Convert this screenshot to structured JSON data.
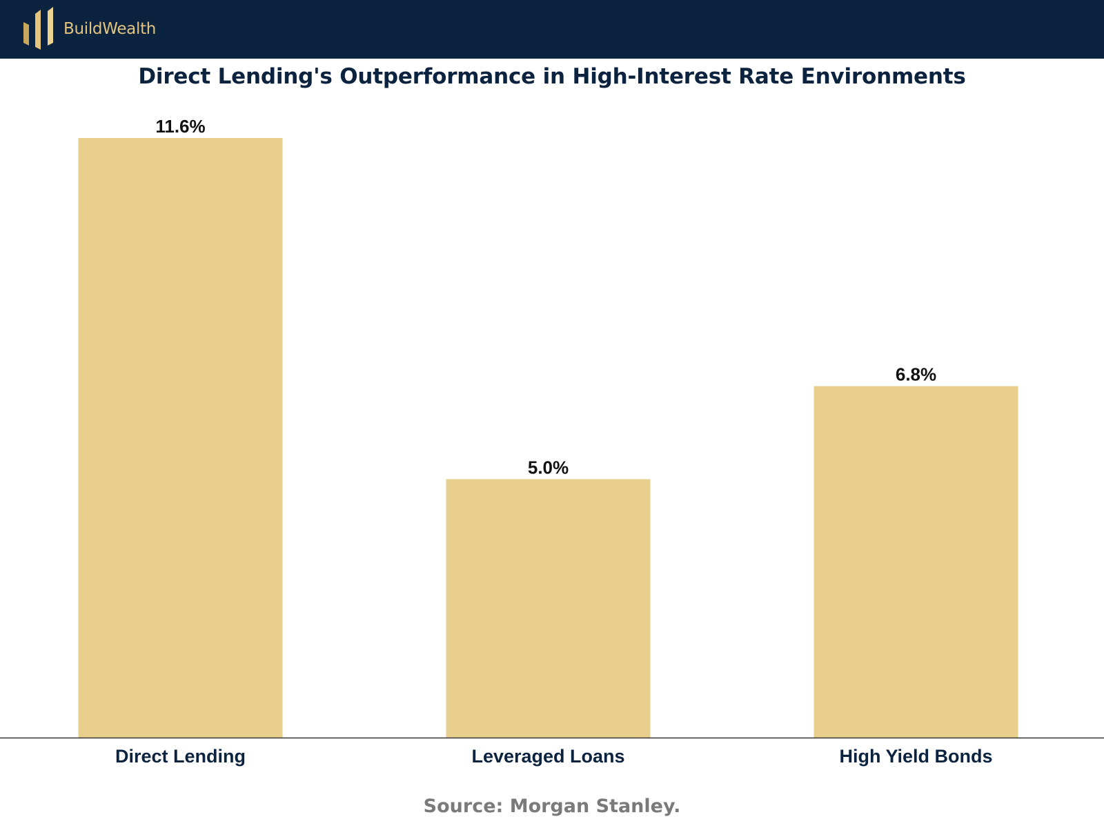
{
  "header": {
    "brand_name": "BuildWealth",
    "logo_icon": "bar-chart-logo-icon",
    "background_color": "#0c2340",
    "accent_color": "#e3c47f"
  },
  "chart_data": {
    "type": "bar",
    "title": "Direct Lending's Outperformance in High-Interest Rate Environments",
    "categories": [
      "Direct Lending",
      "Leveraged Loans",
      "High Yield Bonds"
    ],
    "values": [
      11.6,
      5.0,
      6.8
    ],
    "value_labels": [
      "11.6%",
      "5.0%",
      "6.8%"
    ],
    "xlabel": "",
    "ylabel": "",
    "ylim": [
      0,
      11.6
    ],
    "grid": false,
    "legend": "none",
    "bar_color": "#e8cf8d"
  },
  "footer": {
    "source": "Source: Morgan Stanley."
  }
}
